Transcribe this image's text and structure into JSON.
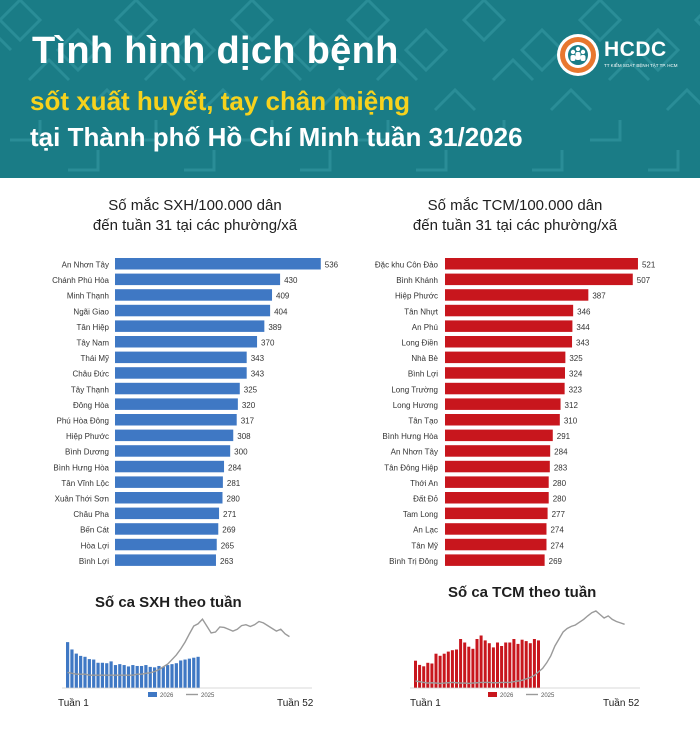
{
  "header": {
    "title_line1": "Tình hình dịch bệnh",
    "title_line2": "sốt xuất huyết, tay chân miệng",
    "title_line3": "tại Thành phố Hồ Chí Minh tuần 31/2026",
    "logo_text": "HCDC",
    "logo_subtext": "TT KIỂM SOÁT BỆNH TẬT TP. HCM"
  },
  "colors": {
    "header_bg": "#1a7c86",
    "title_yellow": "#f7d21d",
    "sxh_blue": "#3f78c4",
    "tcm_red": "#c8161d",
    "logo_orange": "#e8772e"
  },
  "icons": [
    "hcdc-logo-icon"
  ],
  "sxh_panel": {
    "title_line1": "Số mắc SXH/100.000 dân",
    "title_line2": "đến tuần 31 tại các phường/xã",
    "weekly_title": "Số ca SXH theo tuần",
    "x_start_label": "Tuần 1",
    "x_end_label": "Tuần 52"
  },
  "tcm_panel": {
    "title_line1": "Số mắc TCM/100.000 dân",
    "title_line2": "đến tuần 31 tại các phường/xã",
    "weekly_title": "Số ca TCM theo tuần",
    "x_start_label": "Tuần 1",
    "x_end_label": "Tuần 52"
  },
  "chart_data": [
    {
      "type": "bar",
      "orientation": "horizontal",
      "color": "#3f78c4",
      "categories": [
        "An Nhơn Tây",
        "Chánh Phú Hòa",
        "Minh Thạnh",
        "Ngãi Giao",
        "Tân Hiệp",
        "Tây Nam",
        "Thái Mỹ",
        "Châu Đức",
        "Tây Thạnh",
        "Đông Hòa",
        "Phú Hòa Đông",
        "Hiệp Phước",
        "Bình Dương",
        "Bình Hưng Hòa",
        "Tân Vĩnh Lộc",
        "Xuân Thới Sơn",
        "Châu Pha",
        "Bến Cát",
        "Hòa Lợi",
        "Bình Lợi"
      ],
      "values": [
        536,
        430,
        409,
        404,
        389,
        370,
        343,
        343,
        325,
        320,
        317,
        308,
        300,
        284,
        281,
        280,
        271,
        269,
        265,
        263
      ],
      "xlim": [
        0,
        560
      ]
    },
    {
      "type": "bar",
      "orientation": "horizontal",
      "color": "#c8161d",
      "categories": [
        "Đặc khu Côn Đảo",
        "Bình Khánh",
        "Hiệp Phước",
        "Tân Nhựt",
        "An Phú",
        "Long Điền",
        "Nhà Bè",
        "Bình Lợi",
        "Long Trường",
        "Long Hương",
        "Tân Tạo",
        "Bình Hưng Hòa",
        "An Nhơn Tây",
        "Tân Đông Hiệp",
        "Thới An",
        "Đất Đỏ",
        "Tam Long",
        "An Lạc",
        "Tân Mỹ",
        "Bình Trị Đông"
      ],
      "values": [
        521,
        507,
        387,
        346,
        344,
        343,
        325,
        324,
        323,
        312,
        310,
        291,
        284,
        283,
        280,
        280,
        277,
        274,
        274,
        269
      ],
      "xlim": [
        0,
        540
      ]
    },
    {
      "type": "bar",
      "series": [
        {
          "name": "2026",
          "kind": "bar",
          "color": "#3f78c4",
          "values": [
            100,
            84,
            75,
            70,
            68,
            63,
            62,
            55,
            55,
            54,
            58,
            50,
            52,
            50,
            47,
            50,
            48,
            48,
            50,
            46,
            45,
            48,
            46,
            50,
            52,
            54,
            60,
            62,
            64,
            66,
            68
          ]
        },
        {
          "name": "2025",
          "kind": "line",
          "color": "#9a9a9a",
          "values": [
            34,
            32,
            30,
            30,
            30,
            28,
            28,
            28,
            28,
            28,
            28,
            28,
            28,
            28,
            28,
            28,
            30,
            30,
            32,
            33,
            36,
            40,
            46,
            52,
            62,
            72,
            85,
            100,
            118,
            135,
            140,
            150,
            135,
            120,
            122,
            133,
            132,
            128,
            124,
            128,
            136,
            138,
            134,
            138,
            145,
            142,
            136,
            130,
            124,
            128,
            118,
            112
          ]
        }
      ],
      "ylim": [
        0,
        170
      ]
    },
    {
      "type": "bar",
      "series": [
        {
          "name": "2026",
          "kind": "bar",
          "color": "#c8161d",
          "values": [
            78,
            66,
            62,
            72,
            70,
            98,
            92,
            98,
            104,
            108,
            110,
            140,
            130,
            118,
            112,
            140,
            150,
            136,
            128,
            116,
            130,
            120,
            130,
            130,
            140,
            126,
            138,
            134,
            128,
            140,
            136
          ]
        },
        {
          "name": "2025",
          "kind": "line",
          "color": "#9a9a9a",
          "values": [
            20,
            18,
            16,
            14,
            15,
            14,
            13,
            14,
            15,
            16,
            15,
            14,
            14,
            13,
            14,
            15,
            16,
            16,
            16,
            15,
            15,
            16,
            16,
            16,
            18,
            20,
            22,
            26,
            30,
            36,
            46,
            56,
            72,
            92,
            120,
            140,
            160,
            170,
            176,
            180,
            188,
            196,
            206,
            215,
            220,
            210,
            200,
            206,
            196,
            190,
            186,
            182
          ]
        }
      ],
      "ylim": [
        0,
        240
      ]
    }
  ]
}
